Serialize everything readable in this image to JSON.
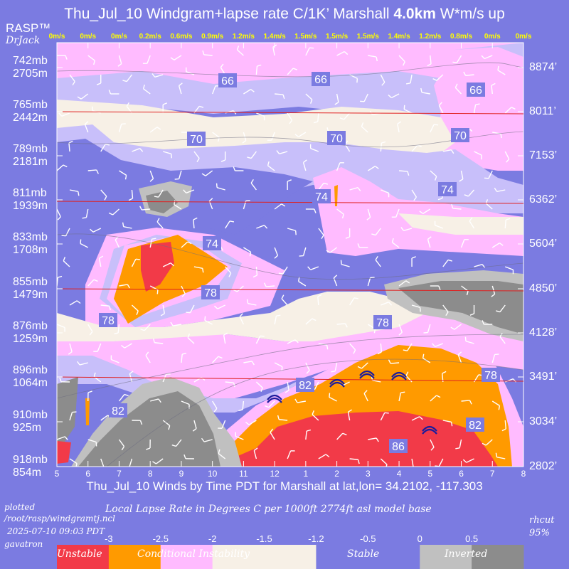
{
  "title": {
    "prefix": "Thu_Jul_10 Windgram+lapse rate C/1K’  Marshall",
    "bold": "4.0km",
    "suffix": "  W*m/s up"
  },
  "branding": {
    "rasp": "RASP™",
    "author": "DrJack"
  },
  "chart_data": {
    "type": "heatmap",
    "title": "Thu_Jul_10 Windgram+lapse rate C/1K’  Marshall 4.0km  W*m/s up",
    "xlabel": "Thu_Jul_10 Winds by Time PDT for Marshall at lat,lon= 34.2102, -117.303",
    "x_ticks": [
      "5",
      "6",
      "7",
      "8",
      "9",
      "10",
      "11",
      "12",
      "1",
      "2",
      "3",
      "4",
      "5",
      "6",
      "7",
      "8"
    ],
    "wstar_top": [
      "0m/s",
      "0m/s",
      "0m/s",
      "0.2m/s",
      "0.6m/s",
      "0.9m/s",
      "1.2m/s",
      "1.4m/s",
      "1.5m/s",
      "1.5m/s",
      "1.5m/s",
      "1.4m/s",
      "1.2m/s",
      "0.8m/s",
      "0m/s",
      "0m/s"
    ],
    "left_axis": [
      {
        "mb": "742mb",
        "m": "2705m"
      },
      {
        "mb": "765mb",
        "m": "2442m"
      },
      {
        "mb": "789mb",
        "m": "2181m"
      },
      {
        "mb": "811mb",
        "m": "1939m"
      },
      {
        "mb": "833mb",
        "m": "1708m"
      },
      {
        "mb": "855mb",
        "m": "1479m"
      },
      {
        "mb": "876mb",
        "m": "1259m"
      },
      {
        "mb": "896mb",
        "m": "1064m"
      },
      {
        "mb": "910mb",
        "m": "925m"
      },
      {
        "mb": "918mb",
        "m": "854m"
      }
    ],
    "right_axis": [
      "8874’",
      "8011’",
      "7153’",
      "6362’",
      "5604’",
      "4850’",
      "4128’",
      "3491’",
      "3034’",
      "2802’"
    ],
    "contour_labels": [
      "66",
      "66",
      "66",
      "70",
      "70",
      "70",
      "74",
      "74",
      "74",
      "78",
      "78",
      "78",
      "78",
      "82",
      "82",
      "82",
      "86"
    ],
    "colorbar": {
      "title": "Local Lapse Rate in Degrees C per 1000ft  2774ft asl model base",
      "ticks": [
        "-3",
        "-2.5",
        "-2",
        "-1.5",
        "-1.2",
        "-0.5",
        "0",
        "0.5"
      ],
      "categories": [
        "Unstable",
        "Conditional Instability",
        "Stable",
        "Inverted"
      ]
    },
    "colors": {
      "background": "#7b7be1",
      "unstable": "#f23a48",
      "conditional": "#ff9a00",
      "light_pink": "#ffbbff",
      "mid_pink": "#f0a0f8",
      "cream": "#f7f0e6",
      "lavender": "#c8bffa",
      "stable_blue": "#7b7be1",
      "light_gray": "#c0c0c0",
      "dark_gray": "#8c8c8c"
    }
  },
  "footer": {
    "plotted_label": "plotted",
    "path": "/root/rasp/windgramtj.ncl",
    "timestamp": "2025-07-10 09:03 PDT",
    "host": "gavatron",
    "rhcut": "rhcut",
    "rhcut_value": "95%"
  }
}
